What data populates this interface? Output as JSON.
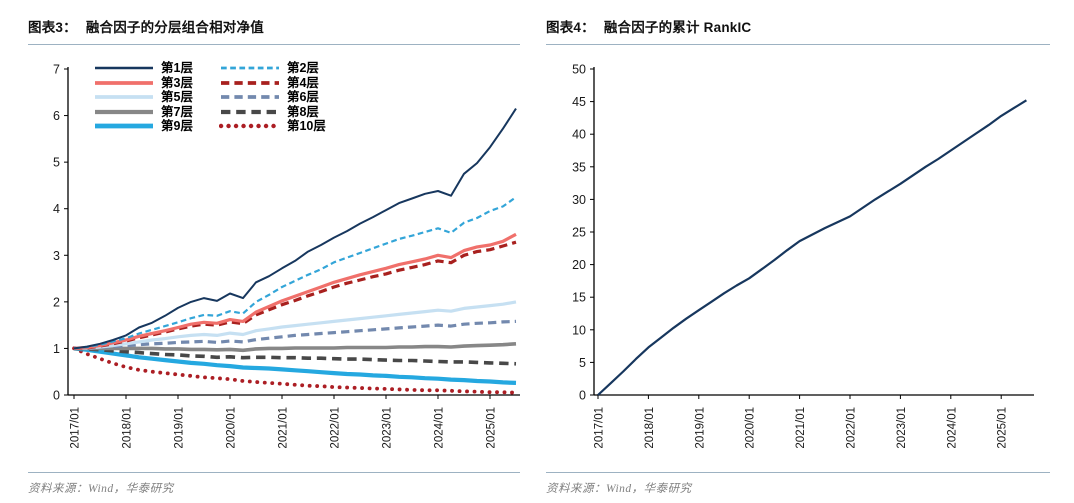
{
  "page": {
    "background": "#ffffff",
    "rule_color": "#9DB2C2",
    "axis_color": "#000000"
  },
  "figures": [
    {
      "label": "图表3：",
      "title": "融合因子的分层组合相对净值",
      "source": "资料来源：Wind，华泰研究"
    },
    {
      "label": "图表4：",
      "title": "融合因子的累计 RankIC",
      "source": "资料来源：Wind，华泰研究"
    }
  ],
  "chart_data": [
    {
      "type": "line",
      "title": "融合因子的分层组合相对净值",
      "xlabel": "",
      "ylabel": "",
      "ylim": [
        0,
        7
      ],
      "yticks": [
        0,
        1,
        2,
        3,
        4,
        5,
        6,
        7
      ],
      "xtick_labels": [
        "2017/01",
        "2018/01",
        "2019/01",
        "2020/01",
        "2021/01",
        "2022/01",
        "2023/01",
        "2024/01",
        "2025/01"
      ],
      "xtick_years": [
        2017,
        2018,
        2019,
        2020,
        2021,
        2022,
        2023,
        2024,
        2025
      ],
      "grid": false,
      "legend_position": "top-left",
      "x_years": [
        2017.0,
        2017.25,
        2017.5,
        2017.75,
        2018.0,
        2018.25,
        2018.5,
        2018.75,
        2019.0,
        2019.25,
        2019.5,
        2019.75,
        2020.0,
        2020.25,
        2020.5,
        2020.75,
        2021.0,
        2021.25,
        2021.5,
        2021.75,
        2022.0,
        2022.25,
        2022.5,
        2022.75,
        2023.0,
        2023.25,
        2023.5,
        2023.75,
        2024.0,
        2024.25,
        2024.5,
        2024.75,
        2025.0,
        2025.25,
        2025.5
      ],
      "series": [
        {
          "name": "第1层",
          "color": "#17375E",
          "style": "solid",
          "width": 2.0,
          "values": [
            1.0,
            1.04,
            1.1,
            1.18,
            1.28,
            1.45,
            1.55,
            1.7,
            1.87,
            2.0,
            2.08,
            2.02,
            2.18,
            2.08,
            2.42,
            2.55,
            2.72,
            2.88,
            3.08,
            3.22,
            3.38,
            3.52,
            3.68,
            3.82,
            3.97,
            4.12,
            4.22,
            4.32,
            4.38,
            4.28,
            4.75,
            4.98,
            5.32,
            5.72,
            6.15
          ]
        },
        {
          "name": "第2层",
          "color": "#33A5D8",
          "style": "dashed",
          "width": 2.2,
          "values": [
            1.0,
            1.03,
            1.08,
            1.15,
            1.22,
            1.32,
            1.4,
            1.48,
            1.56,
            1.65,
            1.72,
            1.7,
            1.8,
            1.75,
            2.0,
            2.15,
            2.32,
            2.45,
            2.58,
            2.7,
            2.85,
            2.95,
            3.05,
            3.15,
            3.25,
            3.35,
            3.42,
            3.5,
            3.58,
            3.48,
            3.7,
            3.8,
            3.95,
            4.05,
            4.25
          ]
        },
        {
          "name": "第3层",
          "color": "#F0706B",
          "style": "solid",
          "width": 3.2,
          "values": [
            1.0,
            1.02,
            1.06,
            1.12,
            1.18,
            1.26,
            1.32,
            1.38,
            1.45,
            1.52,
            1.56,
            1.54,
            1.62,
            1.58,
            1.78,
            1.9,
            2.02,
            2.12,
            2.22,
            2.32,
            2.42,
            2.5,
            2.58,
            2.65,
            2.72,
            2.8,
            2.86,
            2.92,
            3.0,
            2.95,
            3.1,
            3.18,
            3.22,
            3.3,
            3.45
          ]
        },
        {
          "name": "第4层",
          "color": "#A8201E",
          "style": "dashed",
          "width": 3.2,
          "values": [
            1.0,
            1.01,
            1.05,
            1.1,
            1.16,
            1.23,
            1.29,
            1.35,
            1.42,
            1.48,
            1.52,
            1.5,
            1.57,
            1.53,
            1.72,
            1.83,
            1.94,
            2.03,
            2.13,
            2.22,
            2.32,
            2.4,
            2.47,
            2.54,
            2.6,
            2.68,
            2.74,
            2.8,
            2.88,
            2.84,
            3.0,
            3.08,
            3.12,
            3.2,
            3.28
          ]
        },
        {
          "name": "第5层",
          "color": "#C6E0F2",
          "style": "solid",
          "width": 3.2,
          "values": [
            1.0,
            1.01,
            1.03,
            1.06,
            1.1,
            1.14,
            1.18,
            1.21,
            1.25,
            1.28,
            1.3,
            1.28,
            1.33,
            1.3,
            1.38,
            1.42,
            1.46,
            1.49,
            1.52,
            1.55,
            1.58,
            1.61,
            1.64,
            1.67,
            1.7,
            1.73,
            1.76,
            1.79,
            1.82,
            1.8,
            1.86,
            1.89,
            1.92,
            1.95,
            2.0
          ]
        },
        {
          "name": "第6层",
          "color": "#7389AE",
          "style": "dashed",
          "width": 3.2,
          "values": [
            1.0,
            1.0,
            1.02,
            1.04,
            1.06,
            1.08,
            1.1,
            1.11,
            1.13,
            1.14,
            1.15,
            1.13,
            1.16,
            1.14,
            1.19,
            1.22,
            1.25,
            1.28,
            1.3,
            1.32,
            1.34,
            1.36,
            1.38,
            1.4,
            1.42,
            1.44,
            1.46,
            1.48,
            1.5,
            1.48,
            1.52,
            1.54,
            1.55,
            1.57,
            1.58
          ]
        },
        {
          "name": "第7层",
          "color": "#878787",
          "style": "solid",
          "width": 3.6,
          "values": [
            1.0,
            1.0,
            1.0,
            1.0,
            1.0,
            1.0,
            1.0,
            0.99,
            0.99,
            0.98,
            0.98,
            0.97,
            0.98,
            0.96,
            0.99,
            1.0,
            1.0,
            1.01,
            1.01,
            1.01,
            1.01,
            1.02,
            1.02,
            1.02,
            1.02,
            1.03,
            1.03,
            1.04,
            1.04,
            1.03,
            1.05,
            1.06,
            1.07,
            1.08,
            1.1
          ]
        },
        {
          "name": "第8层",
          "color": "#484848",
          "style": "dashed",
          "width": 3.6,
          "values": [
            1.0,
            0.99,
            0.97,
            0.95,
            0.93,
            0.91,
            0.89,
            0.87,
            0.86,
            0.84,
            0.83,
            0.81,
            0.82,
            0.8,
            0.81,
            0.81,
            0.8,
            0.8,
            0.79,
            0.79,
            0.78,
            0.77,
            0.77,
            0.76,
            0.75,
            0.74,
            0.74,
            0.73,
            0.72,
            0.71,
            0.71,
            0.7,
            0.69,
            0.68,
            0.67
          ]
        },
        {
          "name": "第9层",
          "color": "#25A8E0",
          "style": "solid",
          "width": 4.2,
          "values": [
            1.0,
            0.97,
            0.93,
            0.89,
            0.85,
            0.81,
            0.78,
            0.75,
            0.72,
            0.69,
            0.67,
            0.64,
            0.62,
            0.59,
            0.58,
            0.57,
            0.55,
            0.53,
            0.51,
            0.49,
            0.47,
            0.45,
            0.44,
            0.42,
            0.41,
            0.39,
            0.38,
            0.36,
            0.35,
            0.33,
            0.32,
            0.3,
            0.29,
            0.27,
            0.26
          ]
        },
        {
          "name": "第10层",
          "color": "#AC1E24",
          "style": "dotted",
          "width": 3.8,
          "values": [
            1.0,
            0.88,
            0.78,
            0.68,
            0.6,
            0.54,
            0.5,
            0.47,
            0.44,
            0.41,
            0.38,
            0.36,
            0.34,
            0.3,
            0.28,
            0.26,
            0.24,
            0.22,
            0.2,
            0.19,
            0.17,
            0.16,
            0.15,
            0.14,
            0.13,
            0.12,
            0.11,
            0.1,
            0.1,
            0.09,
            0.08,
            0.07,
            0.06,
            0.06,
            0.05
          ]
        }
      ]
    },
    {
      "type": "line",
      "title": "融合因子的累计 RankIC",
      "xlabel": "",
      "ylabel": "",
      "ylim": [
        0,
        50
      ],
      "yticks": [
        0,
        5,
        10,
        15,
        20,
        25,
        30,
        35,
        40,
        45,
        50
      ],
      "xtick_labels": [
        "2017/01",
        "2018/01",
        "2019/01",
        "2020/01",
        "2021/01",
        "2022/01",
        "2023/01",
        "2024/01",
        "2025/01"
      ],
      "xtick_years": [
        2017,
        2018,
        2019,
        2020,
        2021,
        2022,
        2023,
        2024,
        2025
      ],
      "grid": false,
      "legend_position": "none",
      "x_years": [
        2017.0,
        2017.25,
        2017.5,
        2017.75,
        2018.0,
        2018.25,
        2018.5,
        2018.75,
        2019.0,
        2019.25,
        2019.5,
        2019.75,
        2020.0,
        2020.25,
        2020.5,
        2020.75,
        2021.0,
        2021.25,
        2021.5,
        2021.75,
        2022.0,
        2022.25,
        2022.5,
        2022.75,
        2023.0,
        2023.25,
        2023.5,
        2023.75,
        2024.0,
        2024.25,
        2024.5,
        2024.75,
        2025.0,
        2025.25,
        2025.5
      ],
      "series": [
        {
          "name": "累计RankIC",
          "color": "#17375E",
          "style": "solid",
          "width": 2.2,
          "values": [
            0.0,
            1.8,
            3.6,
            5.5,
            7.3,
            8.8,
            10.3,
            11.7,
            13.0,
            14.3,
            15.6,
            16.8,
            17.9,
            19.3,
            20.7,
            22.2,
            23.6,
            24.6,
            25.6,
            26.5,
            27.4,
            28.7,
            30.0,
            31.2,
            32.4,
            33.7,
            35.0,
            36.2,
            37.5,
            38.8,
            40.1,
            41.4,
            42.8,
            44.0,
            45.2
          ]
        }
      ]
    }
  ]
}
